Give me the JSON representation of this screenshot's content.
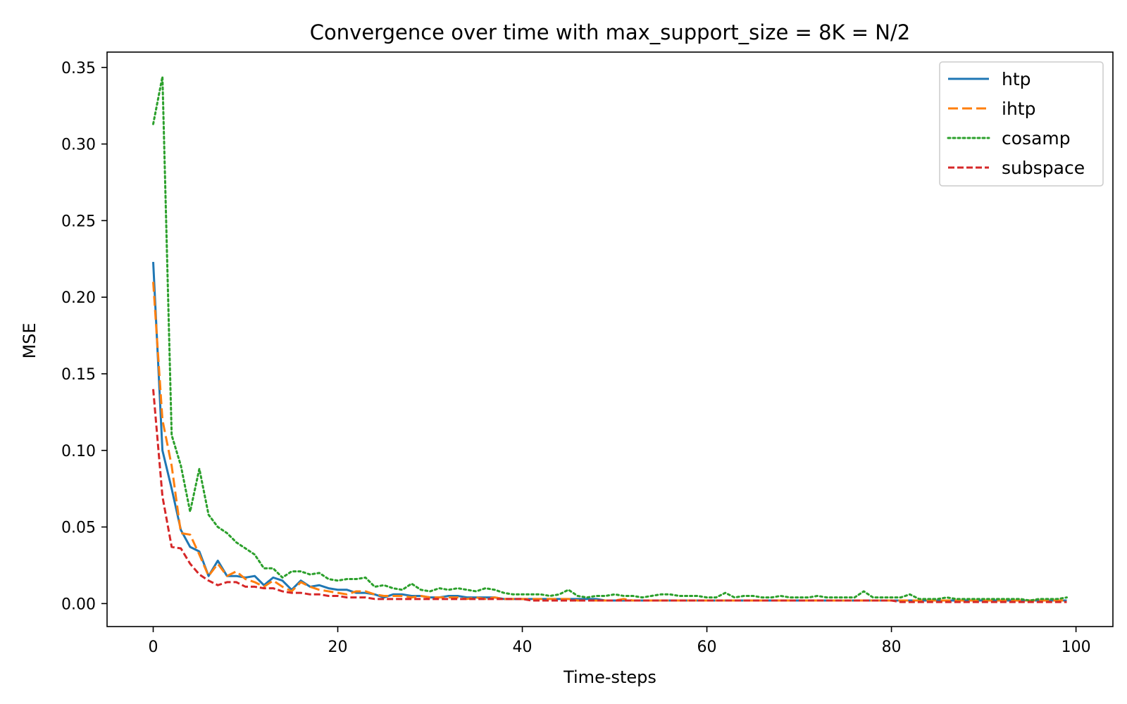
{
  "chart_data": {
    "type": "line",
    "title": "Convergence over time with max_support_size = 8K = N/2",
    "xlabel": "Time-steps",
    "ylabel": "MSE",
    "xlim": [
      -5,
      104
    ],
    "ylim": [
      -0.015,
      0.36
    ],
    "xticks": [
      0,
      20,
      40,
      60,
      80,
      100
    ],
    "xtick_labels": [
      "0",
      "20",
      "40",
      "60",
      "80",
      "100"
    ],
    "yticks": [
      0.0,
      0.05,
      0.1,
      0.15,
      0.2,
      0.25,
      0.3,
      0.35
    ],
    "ytick_labels": [
      "0.00",
      "0.05",
      "0.10",
      "0.15",
      "0.20",
      "0.25",
      "0.30",
      "0.35"
    ],
    "grid": false,
    "legend_position": "top-right",
    "x": [
      0,
      1,
      2,
      3,
      4,
      5,
      6,
      7,
      8,
      9,
      10,
      11,
      12,
      13,
      14,
      15,
      16,
      17,
      18,
      19,
      20,
      21,
      22,
      23,
      24,
      25,
      26,
      27,
      28,
      29,
      30,
      31,
      32,
      33,
      34,
      35,
      36,
      37,
      38,
      39,
      40,
      41,
      42,
      43,
      44,
      45,
      46,
      47,
      48,
      49,
      50,
      51,
      52,
      53,
      54,
      55,
      56,
      57,
      58,
      59,
      60,
      61,
      62,
      63,
      64,
      65,
      66,
      67,
      68,
      69,
      70,
      71,
      72,
      73,
      74,
      75,
      76,
      77,
      78,
      79,
      80,
      81,
      82,
      83,
      84,
      85,
      86,
      87,
      88,
      89,
      90,
      91,
      92,
      93,
      94,
      95,
      96,
      97,
      98,
      99
    ],
    "series": [
      {
        "name": "htp",
        "color": "#1f77b4",
        "dash": "solid",
        "values": [
          0.223,
          0.1,
          0.075,
          0.048,
          0.037,
          0.034,
          0.018,
          0.028,
          0.018,
          0.018,
          0.017,
          0.018,
          0.012,
          0.017,
          0.015,
          0.009,
          0.015,
          0.011,
          0.012,
          0.01,
          0.009,
          0.009,
          0.007,
          0.007,
          0.006,
          0.004,
          0.006,
          0.006,
          0.005,
          0.005,
          0.004,
          0.004,
          0.005,
          0.005,
          0.004,
          0.004,
          0.004,
          0.004,
          0.003,
          0.003,
          0.003,
          0.003,
          0.003,
          0.003,
          0.003,
          0.003,
          0.003,
          0.003,
          0.003,
          0.002,
          0.002,
          0.002,
          0.002,
          0.002,
          0.002,
          0.002,
          0.002,
          0.002,
          0.002,
          0.002,
          0.002,
          0.002,
          0.002,
          0.002,
          0.002,
          0.002,
          0.002,
          0.002,
          0.002,
          0.002,
          0.002,
          0.002,
          0.002,
          0.002,
          0.002,
          0.002,
          0.002,
          0.002,
          0.002,
          0.002,
          0.002,
          0.002,
          0.002,
          0.002,
          0.002,
          0.002,
          0.002,
          0.002,
          0.002,
          0.002,
          0.002,
          0.002,
          0.002,
          0.002,
          0.002,
          0.002,
          0.002,
          0.002,
          0.002,
          0.002
        ]
      },
      {
        "name": "ihtp",
        "color": "#ff7f0e",
        "dash": "dashed",
        "values": [
          0.21,
          0.12,
          0.09,
          0.046,
          0.045,
          0.032,
          0.018,
          0.026,
          0.018,
          0.021,
          0.016,
          0.014,
          0.011,
          0.015,
          0.011,
          0.008,
          0.014,
          0.011,
          0.009,
          0.008,
          0.007,
          0.006,
          0.008,
          0.008,
          0.006,
          0.005,
          0.005,
          0.005,
          0.004,
          0.005,
          0.004,
          0.004,
          0.004,
          0.004,
          0.003,
          0.004,
          0.003,
          0.004,
          0.003,
          0.003,
          0.003,
          0.003,
          0.003,
          0.003,
          0.003,
          0.003,
          0.002,
          0.002,
          0.002,
          0.002,
          0.002,
          0.003,
          0.002,
          0.002,
          0.002,
          0.002,
          0.002,
          0.002,
          0.002,
          0.002,
          0.002,
          0.002,
          0.002,
          0.002,
          0.002,
          0.002,
          0.002,
          0.002,
          0.002,
          0.002,
          0.002,
          0.002,
          0.002,
          0.002,
          0.002,
          0.002,
          0.002,
          0.002,
          0.002,
          0.002,
          0.002,
          0.002,
          0.002,
          0.002,
          0.002,
          0.002,
          0.002,
          0.002,
          0.002,
          0.002,
          0.002,
          0.002,
          0.002,
          0.002,
          0.002,
          0.002,
          0.002,
          0.002,
          0.002,
          0.002
        ]
      },
      {
        "name": "cosamp",
        "color": "#2ca02c",
        "dash": "dotted",
        "values": [
          0.313,
          0.344,
          0.11,
          0.09,
          0.06,
          0.088,
          0.058,
          0.05,
          0.046,
          0.04,
          0.036,
          0.032,
          0.023,
          0.023,
          0.017,
          0.021,
          0.021,
          0.019,
          0.02,
          0.016,
          0.015,
          0.016,
          0.016,
          0.017,
          0.011,
          0.012,
          0.01,
          0.009,
          0.013,
          0.009,
          0.008,
          0.01,
          0.009,
          0.01,
          0.009,
          0.008,
          0.01,
          0.009,
          0.007,
          0.006,
          0.006,
          0.006,
          0.006,
          0.005,
          0.006,
          0.009,
          0.005,
          0.004,
          0.005,
          0.005,
          0.006,
          0.005,
          0.005,
          0.004,
          0.005,
          0.006,
          0.006,
          0.005,
          0.005,
          0.005,
          0.004,
          0.004,
          0.007,
          0.004,
          0.005,
          0.005,
          0.004,
          0.004,
          0.005,
          0.004,
          0.004,
          0.004,
          0.005,
          0.004,
          0.004,
          0.004,
          0.004,
          0.008,
          0.004,
          0.004,
          0.004,
          0.004,
          0.006,
          0.003,
          0.003,
          0.003,
          0.004,
          0.003,
          0.003,
          0.003,
          0.003,
          0.003,
          0.003,
          0.003,
          0.003,
          0.002,
          0.003,
          0.003,
          0.003,
          0.004
        ]
      },
      {
        "name": "subspace",
        "color": "#d62728",
        "dash": "densely-dashed",
        "values": [
          0.14,
          0.07,
          0.037,
          0.036,
          0.026,
          0.019,
          0.015,
          0.012,
          0.014,
          0.014,
          0.011,
          0.011,
          0.01,
          0.01,
          0.008,
          0.007,
          0.007,
          0.006,
          0.006,
          0.005,
          0.005,
          0.004,
          0.004,
          0.004,
          0.003,
          0.003,
          0.003,
          0.003,
          0.003,
          0.003,
          0.003,
          0.003,
          0.003,
          0.003,
          0.003,
          0.003,
          0.003,
          0.003,
          0.003,
          0.003,
          0.003,
          0.002,
          0.002,
          0.002,
          0.002,
          0.002,
          0.002,
          0.002,
          0.002,
          0.002,
          0.002,
          0.002,
          0.002,
          0.002,
          0.002,
          0.002,
          0.002,
          0.002,
          0.002,
          0.002,
          0.002,
          0.002,
          0.002,
          0.002,
          0.002,
          0.002,
          0.002,
          0.002,
          0.002,
          0.002,
          0.002,
          0.002,
          0.002,
          0.002,
          0.002,
          0.002,
          0.002,
          0.002,
          0.002,
          0.002,
          0.002,
          0.001,
          0.001,
          0.001,
          0.001,
          0.001,
          0.001,
          0.001,
          0.001,
          0.001,
          0.001,
          0.001,
          0.001,
          0.001,
          0.001,
          0.001,
          0.001,
          0.001,
          0.001,
          0.001
        ]
      }
    ]
  }
}
